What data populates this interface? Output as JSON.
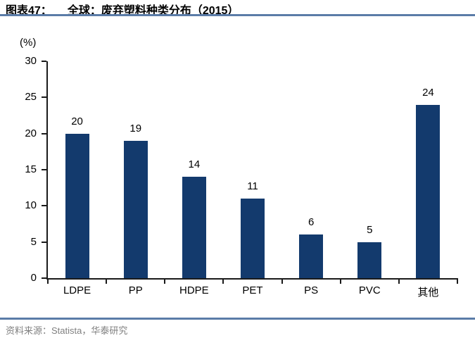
{
  "header": {
    "figure_label": "图表47：",
    "title": "全球：废弃塑料种类分布（2015）"
  },
  "chart_data": {
    "type": "bar",
    "title": "全球：废弃塑料种类分布（2015）",
    "categories": [
      "LDPE",
      "PP",
      "HDPE",
      "PET",
      "PS",
      "PVC",
      "其他"
    ],
    "values": [
      20,
      19,
      14,
      11,
      6,
      5,
      24
    ],
    "xlabel": "",
    "ylabel": "(%)",
    "ylim": [
      0,
      30
    ],
    "yticks": [
      0,
      5,
      10,
      15,
      20,
      25,
      30
    ],
    "grid": false,
    "legend_position": "none",
    "data_labels": true,
    "bar_color": "#133a6d"
  },
  "footer": {
    "source": "资料来源：Statista，华泰研究"
  },
  "colors": {
    "accent_rule": "#5b7ca8",
    "bar": "#133a6d",
    "axis": "#1a1a1a",
    "source_text": "#808080"
  }
}
